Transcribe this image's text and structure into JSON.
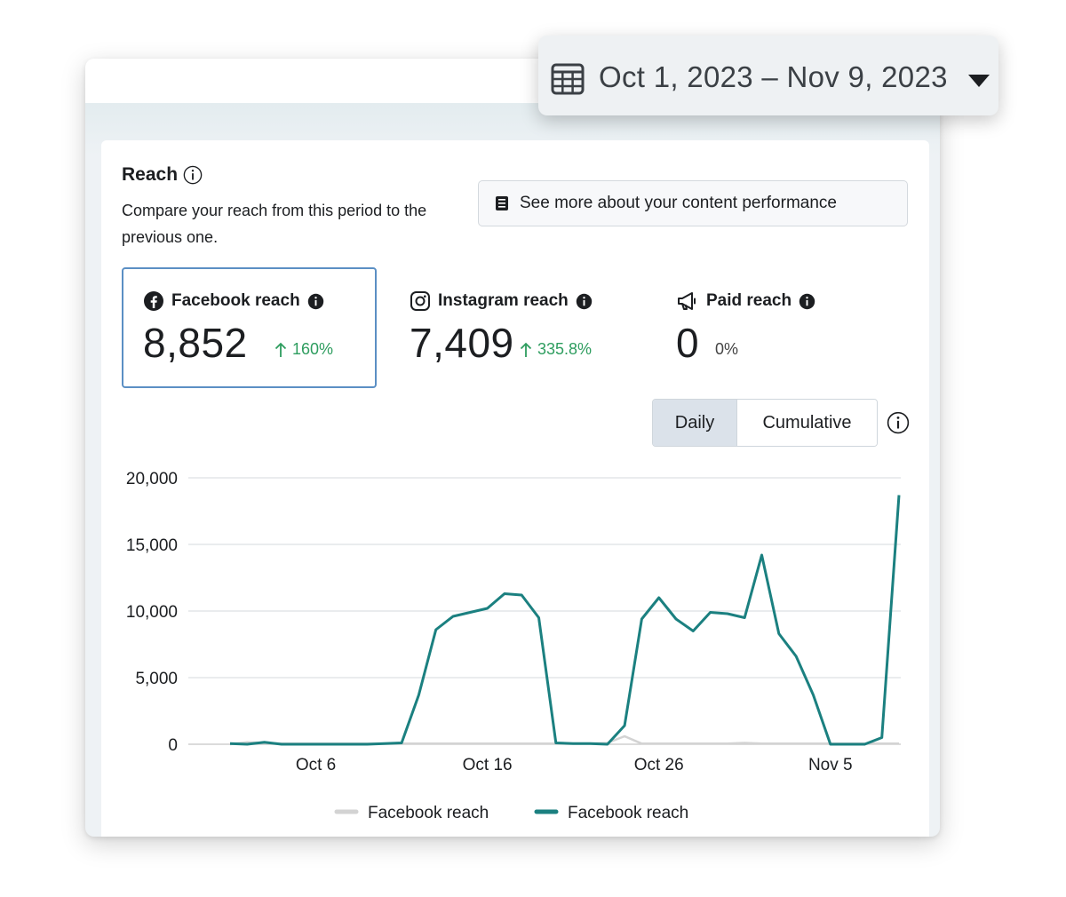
{
  "date_range": {
    "label": "Oct 1, 2023 – Nov 9, 2023",
    "icon": "calendar-icon"
  },
  "reach": {
    "title": "Reach",
    "description": "Compare your reach from this period to the previous one.",
    "content_button_label": "See more about your content performance"
  },
  "metrics": {
    "facebook": {
      "label": "Facebook reach",
      "value": "8,852",
      "change": "160%",
      "icon": "facebook-icon"
    },
    "instagram": {
      "label": "Instagram reach",
      "value": "7,409",
      "change": "335.8%",
      "icon": "instagram-icon"
    },
    "paid": {
      "label": "Paid reach",
      "value": "0",
      "change": "0%",
      "icon": "megaphone-icon"
    }
  },
  "toggle": {
    "daily_label": "Daily",
    "cumulative_label": "Cumulative",
    "selected": "Daily"
  },
  "colors": {
    "accent_teal": "#1b8080",
    "previous_gray": "#d3d3d3",
    "positive_green": "#2e9d5f",
    "selected_border": "#5b8fc4"
  },
  "chart_data": {
    "type": "line",
    "y_ticks": [
      "20,000",
      "15,000",
      "10,000",
      "5,000",
      "0"
    ],
    "x_ticks": [
      "Oct 6",
      "Oct 16",
      "Oct 26",
      "Nov 5"
    ],
    "ylim": [
      0,
      20000
    ],
    "x": [
      "Oct 1",
      "Oct 2",
      "Oct 3",
      "Oct 4",
      "Oct 5",
      "Oct 6",
      "Oct 7",
      "Oct 8",
      "Oct 9",
      "Oct 10",
      "Oct 11",
      "Oct 12",
      "Oct 13",
      "Oct 14",
      "Oct 15",
      "Oct 16",
      "Oct 17",
      "Oct 18",
      "Oct 19",
      "Oct 20",
      "Oct 21",
      "Oct 22",
      "Oct 23",
      "Oct 24",
      "Oct 25",
      "Oct 26",
      "Oct 27",
      "Oct 28",
      "Oct 29",
      "Oct 30",
      "Oct 31",
      "Nov 1",
      "Nov 2",
      "Nov 3",
      "Nov 4",
      "Nov 5",
      "Nov 6",
      "Nov 7",
      "Nov 8",
      "Nov 9"
    ],
    "legend": [
      "Facebook reach",
      "Facebook reach"
    ],
    "series": [
      {
        "name": "Facebook reach",
        "color": "#d3d3d3",
        "values": [
          0,
          150,
          100,
          50,
          50,
          50,
          50,
          50,
          50,
          50,
          50,
          50,
          50,
          50,
          50,
          50,
          50,
          50,
          50,
          50,
          50,
          50,
          100,
          600,
          50,
          50,
          50,
          50,
          50,
          50,
          100,
          50,
          50,
          50,
          50,
          50,
          50,
          50,
          50,
          50
        ]
      },
      {
        "name": "Facebook reach",
        "color": "#1b8080",
        "values": [
          50,
          0,
          150,
          0,
          0,
          0,
          0,
          0,
          0,
          50,
          100,
          3700,
          8600,
          9600,
          9900,
          10200,
          11300,
          11200,
          9500,
          100,
          50,
          50,
          0,
          1400,
          9400,
          11000,
          9400,
          8500,
          9900,
          9800,
          9500,
          14200,
          8300,
          6600,
          3700,
          0,
          0,
          0,
          500,
          18700
        ]
      }
    ]
  }
}
